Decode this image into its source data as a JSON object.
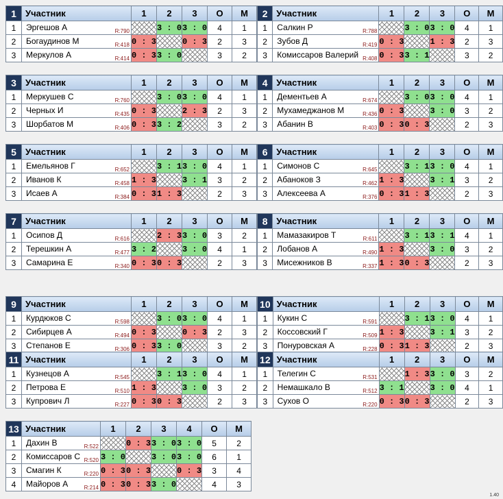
{
  "headers": {
    "participant": "Участник",
    "points": "О",
    "place": "М"
  },
  "groups": [
    {
      "no": "1",
      "rows": [
        {
          "n": "1",
          "name": "Эргешов А",
          "r": "R:790",
          "res": [
            "",
            "3 : 0",
            "3 : 0"
          ],
          "pts": "4",
          "pl": "1"
        },
        {
          "n": "2",
          "name": "Богаудинов М",
          "r": "R:418",
          "res": [
            "0 : 3",
            "",
            "0 : 3"
          ],
          "pts": "2",
          "pl": "3"
        },
        {
          "n": "3",
          "name": "Меркулов А",
          "r": "R:414",
          "res": [
            "0 : 3",
            "3 : 0",
            ""
          ],
          "pts": "3",
          "pl": "2"
        }
      ]
    },
    {
      "no": "2",
      "rows": [
        {
          "n": "1",
          "name": "Салкин Р",
          "r": "R:788",
          "res": [
            "",
            "3 : 0",
            "3 : 0"
          ],
          "pts": "4",
          "pl": "1"
        },
        {
          "n": "2",
          "name": "Зубов Д",
          "r": "R:419",
          "res": [
            "0 : 3",
            "",
            "1 : 3"
          ],
          "pts": "2",
          "pl": "3"
        },
        {
          "n": "3",
          "name": "Комиссаров Валерий",
          "r": "R:408",
          "res": [
            "0 : 3",
            "3 : 1",
            ""
          ],
          "pts": "3",
          "pl": "2"
        }
      ]
    },
    {
      "no": "3",
      "rows": [
        {
          "n": "1",
          "name": "Меркушев С",
          "r": "R:760",
          "res": [
            "",
            "3 : 0",
            "3 : 0"
          ],
          "pts": "4",
          "pl": "1"
        },
        {
          "n": "2",
          "name": "Черных И",
          "r": "R:435",
          "res": [
            "0 : 3",
            "",
            "2 : 3"
          ],
          "pts": "2",
          "pl": "3"
        },
        {
          "n": "3",
          "name": "Шорбатов М",
          "r": "R:406",
          "res": [
            "0 : 3",
            "3 : 2",
            ""
          ],
          "pts": "3",
          "pl": "2"
        }
      ]
    },
    {
      "no": "4",
      "rows": [
        {
          "n": "1",
          "name": "Дементьев А",
          "r": "R:674",
          "res": [
            "",
            "3 : 0",
            "3 : 0"
          ],
          "pts": "4",
          "pl": "1"
        },
        {
          "n": "2",
          "name": "Мухамеджанов М",
          "r": "R:436",
          "res": [
            "0 : 3",
            "",
            "3 : 0"
          ],
          "pts": "3",
          "pl": "2"
        },
        {
          "n": "3",
          "name": "Абанин В",
          "r": "R:403",
          "res": [
            "0 : 3",
            "0 : 3",
            ""
          ],
          "pts": "2",
          "pl": "3"
        }
      ]
    },
    {
      "no": "5",
      "rows": [
        {
          "n": "1",
          "name": "Емельянов Г",
          "r": "R:652",
          "res": [
            "",
            "3 : 1",
            "3 : 0"
          ],
          "pts": "4",
          "pl": "1"
        },
        {
          "n": "2",
          "name": "Иванов К",
          "r": "R:458",
          "res": [
            "1 : 3",
            "",
            "3 : 1"
          ],
          "pts": "3",
          "pl": "2"
        },
        {
          "n": "3",
          "name": "Исаев А",
          "r": "R:384",
          "res": [
            "0 : 3",
            "1 : 3",
            ""
          ],
          "pts": "2",
          "pl": "3"
        }
      ]
    },
    {
      "no": "6",
      "rows": [
        {
          "n": "1",
          "name": "Симонов С",
          "r": "R:645",
          "res": [
            "",
            "3 : 1",
            "3 : 0"
          ],
          "pts": "4",
          "pl": "1"
        },
        {
          "n": "2",
          "name": "Абаноков З",
          "r": "R:462",
          "res": [
            "1 : 3",
            "",
            "3 : 1"
          ],
          "pts": "3",
          "pl": "2"
        },
        {
          "n": "3",
          "name": "Алексеева А",
          "r": "R:376",
          "res": [
            "0 : 3",
            "1 : 3",
            ""
          ],
          "pts": "2",
          "pl": "3"
        }
      ]
    },
    {
      "no": "7",
      "rows": [
        {
          "n": "1",
          "name": "Осипов Д",
          "r": "R:616",
          "res": [
            "",
            "2 : 3",
            "3 : 0"
          ],
          "pts": "3",
          "pl": "2"
        },
        {
          "n": "2",
          "name": "Терешкин А",
          "r": "R:477",
          "res": [
            "3 : 2",
            "",
            "3 : 0"
          ],
          "pts": "4",
          "pl": "1"
        },
        {
          "n": "3",
          "name": "Самарина Е",
          "r": "R:340",
          "res": [
            "0 : 3",
            "0 : 3",
            ""
          ],
          "pts": "2",
          "pl": "3"
        }
      ]
    },
    {
      "no": "8",
      "rows": [
        {
          "n": "1",
          "name": "Мамазакиров Т",
          "r": "R:611",
          "res": [
            "",
            "3 : 1",
            "3 : 1"
          ],
          "pts": "4",
          "pl": "1"
        },
        {
          "n": "2",
          "name": "Лобанов А",
          "r": "R:490",
          "res": [
            "1 : 3",
            "",
            "3 : 0"
          ],
          "pts": "3",
          "pl": "2"
        },
        {
          "n": "3",
          "name": "Мисежников В",
          "r": "R:337",
          "res": [
            "1 : 3",
            "0 : 3",
            ""
          ],
          "pts": "2",
          "pl": "3"
        }
      ]
    },
    {
      "no": "9",
      "rows": [
        {
          "n": "1",
          "name": "Курдюков С",
          "r": "R:598",
          "res": [
            "",
            "3 : 0",
            "3 : 0"
          ],
          "pts": "4",
          "pl": "1"
        },
        {
          "n": "2",
          "name": "Сибирцев А",
          "r": "R:494",
          "res": [
            "0 : 3",
            "",
            "0 : 3"
          ],
          "pts": "2",
          "pl": "3"
        },
        {
          "n": "3",
          "name": "Степанов Е",
          "r": "R:306",
          "res": [
            "0 : 3",
            "3 : 0",
            ""
          ],
          "pts": "3",
          "pl": "2"
        }
      ]
    },
    {
      "no": "10",
      "rows": [
        {
          "n": "1",
          "name": "Кукин С",
          "r": "R:591",
          "res": [
            "",
            "3 : 1",
            "3 : 0"
          ],
          "pts": "4",
          "pl": "1"
        },
        {
          "n": "2",
          "name": "Коссовский Г",
          "r": "R:509",
          "res": [
            "1 : 3",
            "",
            "3 : 1"
          ],
          "pts": "3",
          "pl": "2"
        },
        {
          "n": "3",
          "name": "Понуровская А",
          "r": "R:228",
          "res": [
            "0 : 3",
            "1 : 3",
            ""
          ],
          "pts": "2",
          "pl": "3"
        }
      ]
    },
    {
      "no": "11",
      "rows": [
        {
          "n": "1",
          "name": "Кузнецов А",
          "r": "R:545",
          "res": [
            "",
            "3 : 1",
            "3 : 0"
          ],
          "pts": "4",
          "pl": "1"
        },
        {
          "n": "2",
          "name": "Петрова Е",
          "r": "R:510",
          "res": [
            "1 : 3",
            "",
            "3 : 0"
          ],
          "pts": "3",
          "pl": "2"
        },
        {
          "n": "3",
          "name": "Купрович Л",
          "r": "R:227",
          "res": [
            "0 : 3",
            "0 : 3",
            ""
          ],
          "pts": "2",
          "pl": "3"
        }
      ]
    },
    {
      "no": "12",
      "rows": [
        {
          "n": "1",
          "name": "Телегин С",
          "r": "R:531",
          "res": [
            "",
            "1 : 3",
            "3 : 0"
          ],
          "pts": "3",
          "pl": "2"
        },
        {
          "n": "2",
          "name": "Немашкало В",
          "r": "R:512",
          "res": [
            "3 : 1",
            "",
            "3 : 0"
          ],
          "pts": "4",
          "pl": "1"
        },
        {
          "n": "3",
          "name": "Сухов О",
          "r": "R:220",
          "res": [
            "0 : 3",
            "0 : 3",
            ""
          ],
          "pts": "2",
          "pl": "3"
        }
      ]
    },
    {
      "no": "13",
      "rows": [
        {
          "n": "1",
          "name": "Дахин В",
          "r": "R:522",
          "res": [
            "",
            "0 : 3",
            "3 : 0",
            "3 : 0"
          ],
          "pts": "5",
          "pl": "2"
        },
        {
          "n": "2",
          "name": "Комиссаров С",
          "r": "R:520",
          "res": [
            "3 : 0",
            "",
            "3 : 0",
            "3 : 0"
          ],
          "pts": "6",
          "pl": "1"
        },
        {
          "n": "3",
          "name": "Смагин К",
          "r": "R:220",
          "res": [
            "0 : 3",
            "0 : 3",
            "",
            "0 : 3"
          ],
          "pts": "3",
          "pl": "4"
        },
        {
          "n": "4",
          "name": "Майоров А",
          "r": "R:214",
          "res": [
            "0 : 3",
            "0 : 3",
            "3 : 0",
            ""
          ],
          "pts": "4",
          "pl": "3"
        }
      ]
    }
  ],
  "version": "1.40"
}
